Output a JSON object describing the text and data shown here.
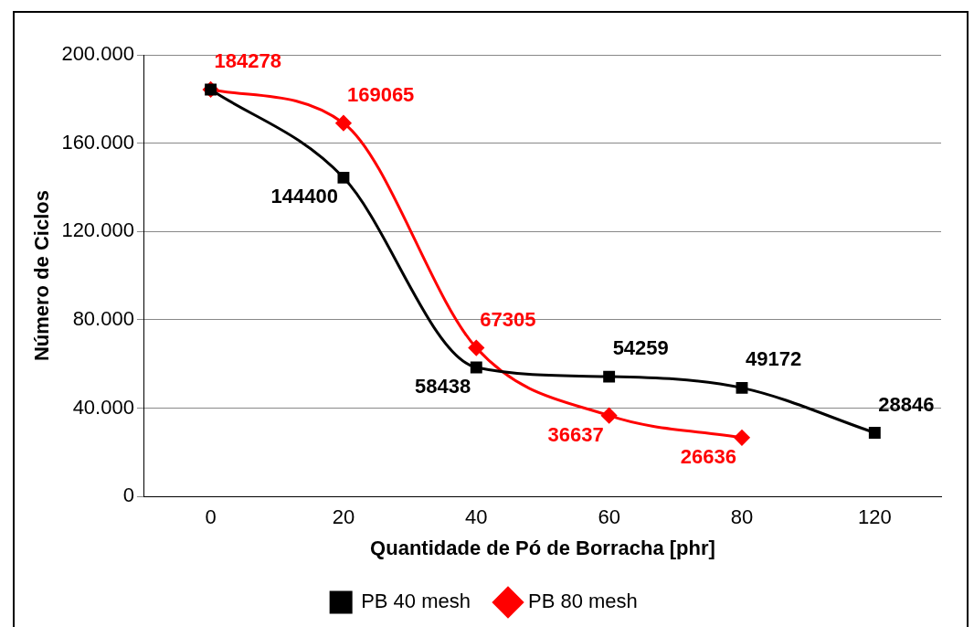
{
  "chart_data": {
    "type": "line",
    "xlabel": "Quantidade de Pó de Borracha [phr]",
    "ylabel": "Número de Ciclos",
    "categories": [
      "0",
      "20",
      "40",
      "60",
      "80",
      "120"
    ],
    "series": [
      {
        "name": "PB 40 mesh",
        "color": "#000000",
        "marker": "square",
        "values": [
          184278,
          144400,
          58438,
          54259,
          49172,
          28846
        ],
        "value_labels": [
          null,
          "144400",
          "58438",
          "54259",
          "49172",
          "28846"
        ]
      },
      {
        "name": "PB 80 mesh",
        "color": "#ff0000",
        "marker": "diamond",
        "values": [
          184278,
          169065,
          67305,
          36637,
          26636,
          null
        ],
        "value_labels": [
          "184278",
          "169065",
          "67305",
          "36637",
          "26636",
          null
        ]
      }
    ],
    "ylim": [
      0,
      200000
    ],
    "yticks": [
      {
        "value": 0,
        "label": "0"
      },
      {
        "value": 40000,
        "label": "40.000"
      },
      {
        "value": 80000,
        "label": "80.000"
      },
      {
        "value": 120000,
        "label": "120.000"
      },
      {
        "value": 160000,
        "label": "160.000"
      },
      {
        "value": 200000,
        "label": "200.000"
      }
    ],
    "grid": "y",
    "legend": "bottom"
  }
}
